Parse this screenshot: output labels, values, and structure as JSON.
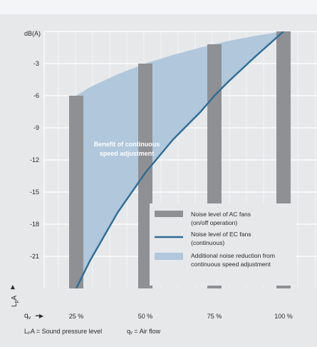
{
  "chart_data": {
    "type": "bar",
    "ylabel": "dB(A)",
    "ylim": [
      -24,
      0
    ],
    "yticks": [
      -3,
      -6,
      -9,
      -12,
      -15,
      -18,
      -21
    ],
    "ytick_labels": [
      "-3",
      "-6",
      "-9",
      "-12",
      "-15",
      "-18",
      "-21"
    ],
    "categories": [
      "25 %",
      "50 %",
      "75 %",
      "100 %"
    ],
    "x": [
      25,
      50,
      75,
      100
    ],
    "series": [
      {
        "name": "Noise level of AC fans (on/off operation)",
        "type": "bar",
        "values": [
          -6,
          -3,
          -1.2,
          0
        ],
        "color": "#8e9094"
      },
      {
        "name": "Noise level of EC fans (continuous)",
        "type": "line",
        "x": [
          25,
          30,
          40,
          50,
          60,
          70,
          75,
          80,
          90,
          100
        ],
        "values": [
          -24,
          -21.4,
          -16.9,
          -13.2,
          -10.1,
          -7.5,
          -6,
          -4.7,
          -2.3,
          0
        ],
        "color": "#2f6c96"
      },
      {
        "name": "Additional noise reduction from continuous speed adjustment",
        "type": "area",
        "x": [
          25,
          30,
          40,
          50,
          60,
          70,
          75,
          80,
          90,
          100
        ],
        "values": [
          -6,
          -5.2,
          -4,
          -3,
          -2.2,
          -1.5,
          -1.2,
          -0.9,
          -0.4,
          0
        ],
        "color": "#b0c7dc"
      }
    ],
    "annotations": [
      "Benefit of continuous",
      "speed adjustment"
    ],
    "legend_position": "bottom-right",
    "xaxis_symbol": "q",
    "xaxis_symbol_sub": "v",
    "yaxis_symbol": "L",
    "yaxis_symbol_sub": "p",
    "yaxis_symbol_suffix": "A",
    "footnote_left": "LₚA = Sound pressure level",
    "footnote_right": "qᵥ = Air flow",
    "grid": true
  },
  "legend": [
    {
      "line1": "Noise level of AC fans",
      "line2": "(on/off operation)"
    },
    {
      "line1": "Noise level of EC fans",
      "line2": "(continuous)"
    },
    {
      "line1": "Additional noise reduction from",
      "line2": "continuous speed adjustment"
    }
  ],
  "colors": {
    "panel": "#e6e8ea",
    "plot": "#e6e8ea",
    "grid": "#ffffff",
    "bar": "#8e9094",
    "line": "#2f6c96",
    "fill": "#b0c7dc"
  }
}
